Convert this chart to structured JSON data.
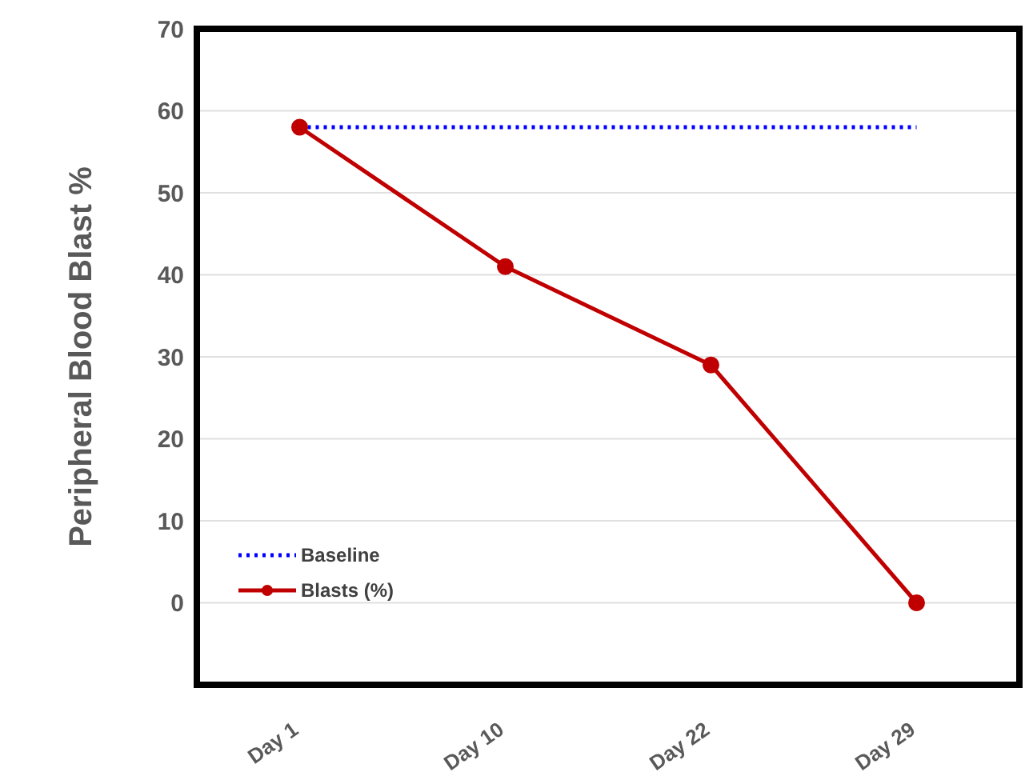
{
  "chart_data": {
    "type": "line",
    "ylabel": "Peripheral Blood Blast %",
    "categories": [
      "Day 1",
      "Day 10",
      "Day 22",
      "Day 29"
    ],
    "series": [
      {
        "name": "Baseline",
        "color": "#0000ff",
        "values": [
          58,
          58,
          58,
          58
        ],
        "line_style": "dotted",
        "marker": "none"
      },
      {
        "name": "Blasts (%)",
        "color": "#c00000",
        "values": [
          58,
          41,
          29,
          0
        ],
        "line_style": "solid",
        "marker": "circle"
      }
    ],
    "ylim": [
      -10,
      70
    ],
    "yticks": [
      0,
      10,
      20,
      30,
      40,
      50,
      60,
      70
    ],
    "grid": "y",
    "legend": "bottom left"
  }
}
